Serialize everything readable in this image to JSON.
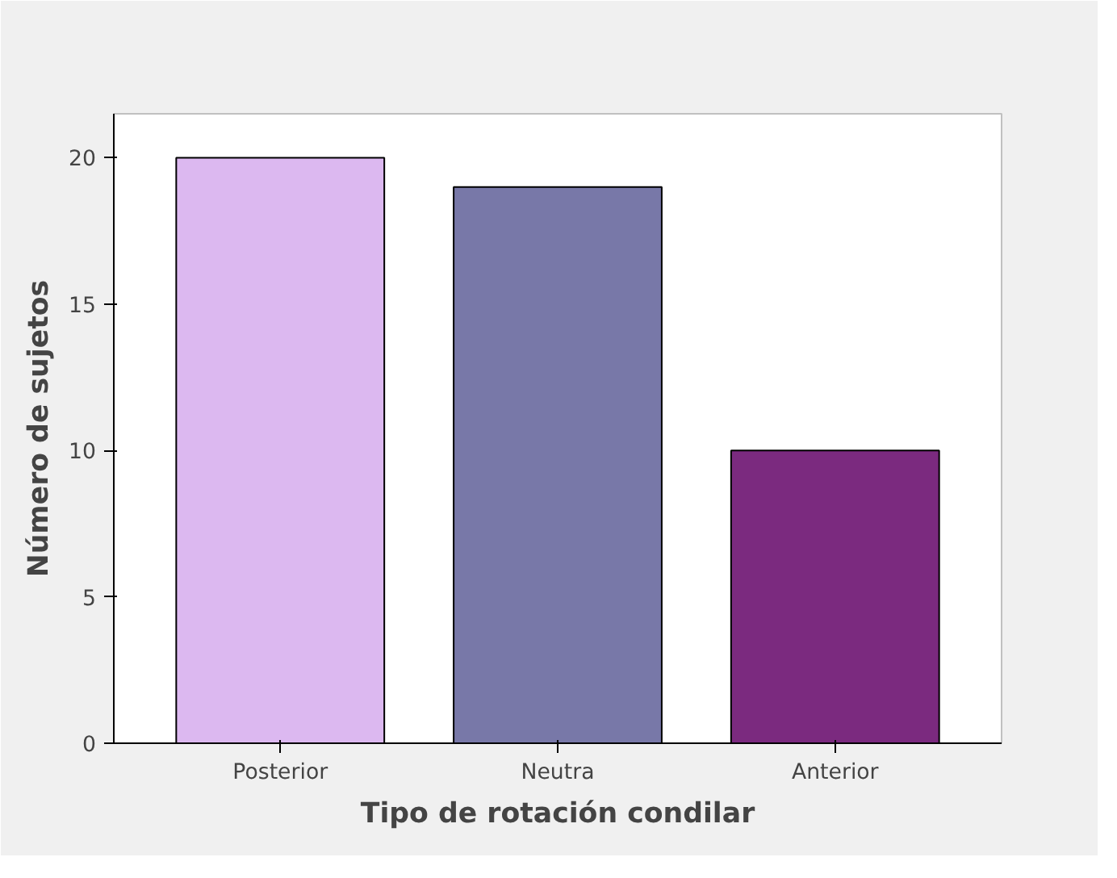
{
  "chart_data": {
    "type": "bar",
    "xlabel": "Tipo de rotación condilar",
    "ylabel": "Número de sujetos",
    "categories": [
      "Posterior",
      "Neutra",
      "Anterior"
    ],
    "values": [
      20,
      19,
      10
    ],
    "colors": [
      "#dcb8f0",
      "#7878a8",
      "#7b2a7f"
    ],
    "ylim": [
      0,
      21.5
    ],
    "yticks": [
      0,
      5,
      10,
      15,
      20
    ],
    "grid": false
  }
}
